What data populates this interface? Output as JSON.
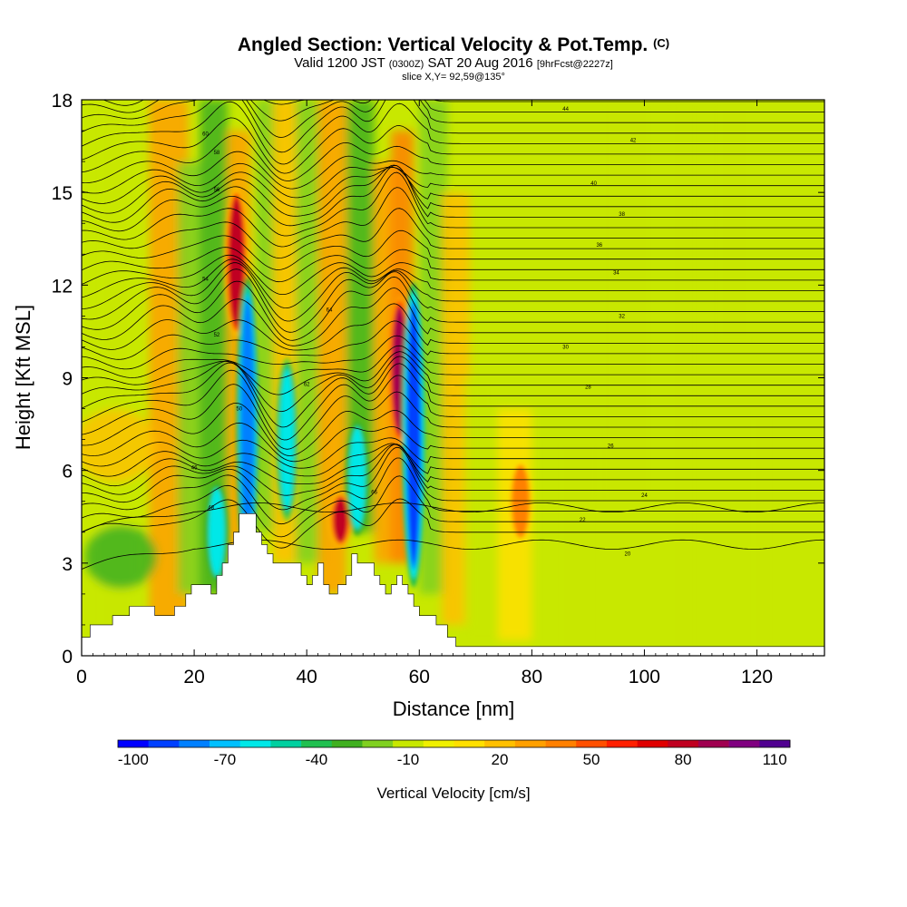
{
  "title": {
    "main": "Angled Section: Vertical Velocity & Pot.Temp.",
    "main_unit": "(C)",
    "valid_prefix": "Valid 1200 JST",
    "valid_utc": "(0300Z)",
    "valid_date": "SAT 20 Aug 2016",
    "forecast": "[9hrFcst@2227z]",
    "slice": "slice X,Y= 92,59@135°"
  },
  "chart_data": {
    "type": "heatmap",
    "xlabel": "Distance [nm]",
    "ylabel": "Height [Kft MSL]",
    "xlim": [
      0,
      132
    ],
    "ylim": [
      0,
      18
    ],
    "x_ticks": [
      0,
      20,
      40,
      60,
      80,
      100,
      120
    ],
    "y_ticks": [
      0,
      3,
      6,
      9,
      12,
      15,
      18
    ],
    "colorbar": {
      "title": "Vertical Velocity [cm/s]",
      "min": -100,
      "max": 120,
      "labels": [
        -100,
        -70,
        -40,
        -10,
        20,
        50,
        80,
        110
      ],
      "colors": [
        "#0000ff",
        "#0040ff",
        "#0080ff",
        "#00c0ff",
        "#00e8e8",
        "#00d0a0",
        "#20c050",
        "#40b020",
        "#80d020",
        "#c8e800",
        "#f0f000",
        "#ffe000",
        "#ffc000",
        "#ffa000",
        "#ff8000",
        "#ff5000",
        "#ff2000",
        "#e00000",
        "#c00020",
        "#a00050",
        "#800080",
        "#500090"
      ]
    },
    "updrafts": [
      {
        "x": 27.5,
        "z0": 10.5,
        "z1": 15.0,
        "peak": 85
      },
      {
        "x": 56.5,
        "z0": 7.0,
        "z1": 11.5,
        "peak": 90
      },
      {
        "x": 46.0,
        "z0": 3.6,
        "z1": 5.2,
        "peak": 80
      },
      {
        "x": 78.0,
        "z0": 3.8,
        "z1": 6.2,
        "peak": 50
      }
    ],
    "downdrafts": [
      {
        "x": 29.5,
        "z0": 3.0,
        "z1": 12.0,
        "peak": -80
      },
      {
        "x": 36.5,
        "z0": 4.5,
        "z1": 9.5,
        "peak": -55
      },
      {
        "x": 59.0,
        "z0": 2.5,
        "z1": 11.8,
        "peak": -90
      },
      {
        "x": 49.0,
        "z0": 4.0,
        "z1": 7.5,
        "peak": -60
      },
      {
        "x": 24.0,
        "z0": 2.5,
        "z1": 5.5,
        "peak": -60
      }
    ],
    "isentrope_labels": [
      "20",
      "22",
      "24",
      "26",
      "28",
      "30",
      "32",
      "34",
      "36",
      "38",
      "40",
      "42",
      "44",
      "46",
      "48",
      "50",
      "52",
      "54",
      "56",
      "58",
      "60",
      "62",
      "64",
      "66"
    ],
    "terrain": {
      "x": [
        0,
        1.5,
        1.5,
        5.5,
        5.5,
        8.5,
        8.5,
        13,
        13,
        16.5,
        16.5,
        18.5,
        18.5,
        19.5,
        19.5,
        21,
        21,
        23,
        23,
        24,
        24,
        25,
        25,
        26,
        26,
        27,
        27,
        28,
        28,
        31,
        31,
        32,
        32,
        33,
        33,
        34,
        34,
        35,
        35,
        39,
        39,
        40,
        40,
        41,
        41,
        42,
        42,
        43,
        43,
        44,
        44,
        45.5,
        45.5,
        47,
        47,
        48,
        48,
        49,
        49,
        52,
        52,
        53,
        53,
        54,
        54,
        55,
        55,
        56,
        56,
        57,
        57,
        58,
        58,
        59,
        59,
        60,
        60,
        63,
        63,
        65,
        65,
        66.5,
        66.5,
        68,
        68,
        71,
        71,
        132
      ],
      "z": [
        0.6,
        0.6,
        1.0,
        1.0,
        1.3,
        1.3,
        1.6,
        1.6,
        1.3,
        1.3,
        1.6,
        1.6,
        2.0,
        2.0,
        2.3,
        2.3,
        2.3,
        2.3,
        2.0,
        2.0,
        2.6,
        2.6,
        3.0,
        3.0,
        3.6,
        3.6,
        4.0,
        4.0,
        4.6,
        4.6,
        4.0,
        4.0,
        3.6,
        3.6,
        3.3,
        3.3,
        3.0,
        3.0,
        3.0,
        3.0,
        2.6,
        2.6,
        2.3,
        2.3,
        2.6,
        2.6,
        3.0,
        3.0,
        2.3,
        2.3,
        2.0,
        2.0,
        2.3,
        2.3,
        2.6,
        2.6,
        3.3,
        3.3,
        3.0,
        3.0,
        2.6,
        2.6,
        2.3,
        2.3,
        2.0,
        2.0,
        2.3,
        2.3,
        2.6,
        2.6,
        2.3,
        2.3,
        2.0,
        2.0,
        1.6,
        1.6,
        1.3,
        1.3,
        1.0,
        1.0,
        0.6,
        0.6,
        0.3,
        0.3,
        0.3,
        0.3,
        0.3,
        0.3
      ]
    }
  }
}
